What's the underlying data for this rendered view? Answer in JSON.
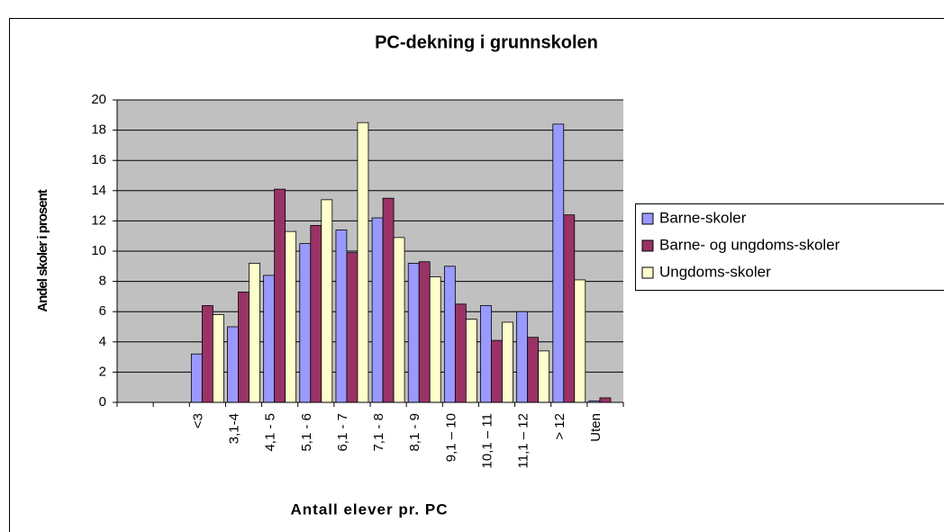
{
  "chart_data": {
    "type": "bar",
    "title": "PC-dekning i grunnskolen",
    "x_label": "Antall elever pr. PC",
    "y_label": "Andel skoler i prosent",
    "categories": [
      null,
      null,
      "<3",
      "3,1-4",
      "4,1 - 5",
      "5,1 - 6",
      "6,1 - 7",
      "7,1 - 8",
      "8,1 - 9",
      "9,1 – 10",
      "10,1 – 11",
      "11,1 – 12",
      "> 12",
      "Uten"
    ],
    "series": [
      {
        "name": "Barne-skoler",
        "color": "#9999ff",
        "values": [
          null,
          null,
          3.2,
          5.0,
          8.4,
          10.5,
          11.4,
          12.2,
          9.2,
          9.0,
          6.4,
          6.0,
          18.4,
          0.1
        ]
      },
      {
        "name": "Barne- og ungdoms-skoler",
        "color": "#993366",
        "values": [
          null,
          null,
          6.4,
          7.3,
          14.1,
          11.7,
          9.9,
          13.5,
          9.3,
          6.5,
          4.1,
          4.3,
          12.4,
          0.3
        ]
      },
      {
        "name": "Ungdoms-skoler",
        "color": "#ffffcc",
        "values": [
          null,
          null,
          5.8,
          9.2,
          11.3,
          13.4,
          18.5,
          10.9,
          8.3,
          5.5,
          5.3,
          3.4,
          8.1,
          0
        ]
      }
    ],
    "ylim": [
      0,
      20
    ],
    "yticks": [
      0,
      2,
      4,
      6,
      8,
      10,
      12,
      14,
      16,
      18,
      20
    ],
    "grid": true,
    "legend": "right",
    "plot_background": "#c0c0c0"
  }
}
